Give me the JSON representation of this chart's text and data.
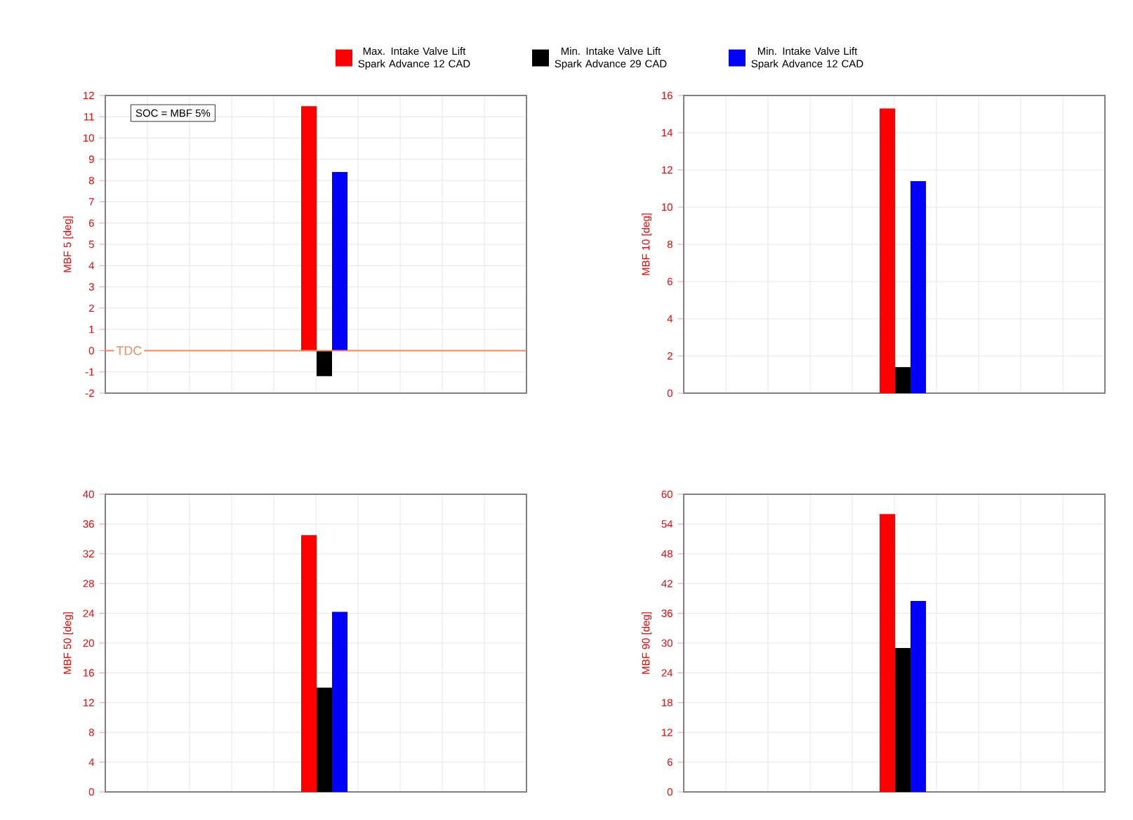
{
  "chart_data": [
    {
      "type": "bar",
      "ylabel": "MBF 5 [deg]",
      "categories": [
        null
      ],
      "legend": "top",
      "grid": true,
      "series": [
        {
          "name": "Max. Intake Valve Lift Spark Advance 12 CAD",
          "color": "#ff0000",
          "values": [
            11.5
          ]
        },
        {
          "name": "Min. Intake Valve Lift Spark Advance 29 CAD",
          "color": "#000000",
          "values": [
            -1.2
          ]
        },
        {
          "name": "Min. Intake Valve Lift Spark Advance 12 CAD",
          "color": "#0000ff",
          "values": [
            8.4
          ]
        }
      ],
      "ylim": [
        -2,
        12
      ],
      "yticks": [
        -2,
        -1,
        0,
        1,
        2,
        3,
        4,
        5,
        6,
        7,
        8,
        9,
        10,
        11,
        12
      ],
      "ref_lines": [
        {
          "axis": "y",
          "value": 0,
          "label": "TDC",
          "color": "#f08a5d"
        }
      ],
      "annotations": [
        "SOC = MBF 5%"
      ]
    },
    {
      "type": "bar",
      "ylabel": "MBF 10 [deg]",
      "categories": [
        null
      ],
      "grid": true,
      "series": [
        {
          "color": "#ff0000",
          "values": [
            15.3
          ]
        },
        {
          "color": "#000000",
          "values": [
            1.4
          ]
        },
        {
          "color": "#0000ff",
          "values": [
            11.4
          ]
        }
      ],
      "ylim": [
        0,
        16
      ],
      "yticks": [
        0,
        2,
        4,
        6,
        8,
        10,
        12,
        14,
        16
      ]
    },
    {
      "type": "bar",
      "ylabel": "MBF 50 [deg]",
      "categories": [
        null
      ],
      "grid": true,
      "series": [
        {
          "color": "#ff0000",
          "values": [
            34.5
          ]
        },
        {
          "color": "#000000",
          "values": [
            14
          ]
        },
        {
          "color": "#0000ff",
          "values": [
            24.2
          ]
        }
      ],
      "ylim": [
        0,
        40
      ],
      "yticks": [
        0,
        4,
        8,
        12,
        16,
        20,
        24,
        28,
        32,
        36,
        40
      ]
    },
    {
      "type": "bar",
      "ylabel": "MBF 90 [deg]",
      "categories": [
        null
      ],
      "grid": true,
      "series": [
        {
          "color": "#ff0000",
          "values": [
            56
          ]
        },
        {
          "color": "#000000",
          "values": [
            29
          ]
        },
        {
          "color": "#0000ff",
          "values": [
            38.5
          ]
        }
      ],
      "ylim": [
        0,
        60
      ],
      "yticks": [
        0,
        6,
        12,
        18,
        24,
        30,
        36,
        42,
        48,
        54,
        60
      ]
    }
  ]
}
